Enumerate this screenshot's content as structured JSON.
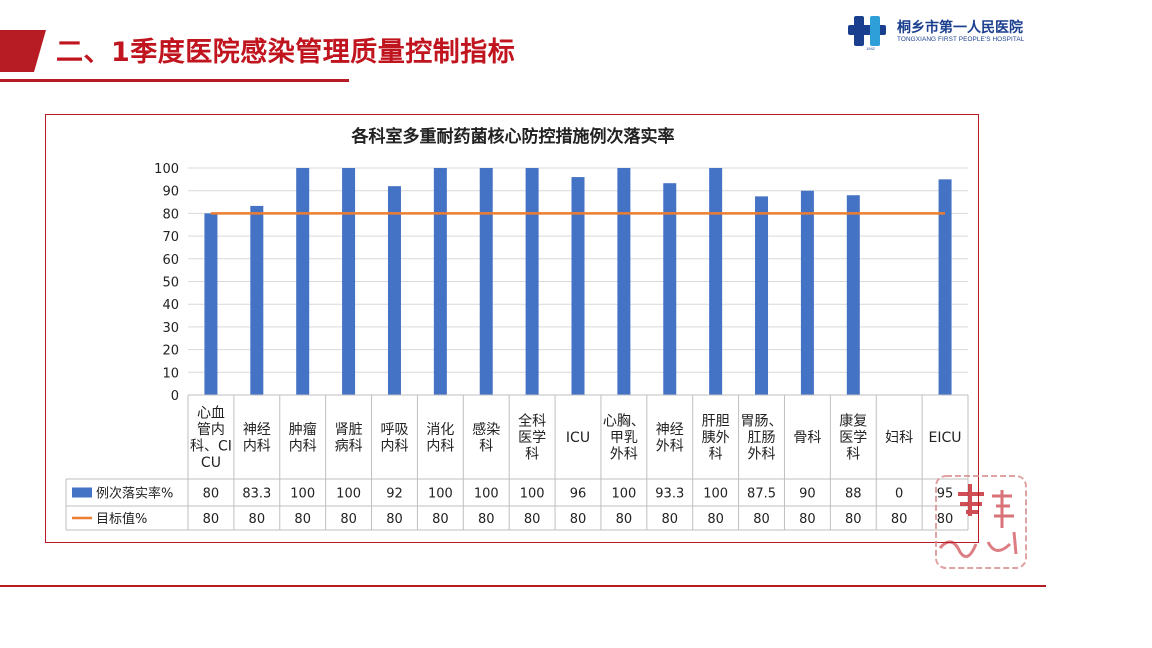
{
  "slide": {
    "title": "二、1季度医院感染管理质量控制指标"
  },
  "logo": {
    "name_cn": "桐乡市第一人民医院",
    "name_en": "TONGXIANG FIRST PEOPLE'S HOSPITAL",
    "year": "1942"
  },
  "colors": {
    "accent": "#b71c24",
    "bar": "#4472c4",
    "target_line": "#ed7d31",
    "logo_blue": "#1b3f8f"
  },
  "chart_data": {
    "type": "bar",
    "title": "各科室多重耐药菌核心防控措施例次落实率",
    "categories": [
      [
        "心血",
        "管内",
        "科、CI",
        "CU"
      ],
      [
        "神经",
        "内科"
      ],
      [
        "肿瘤",
        "内科"
      ],
      [
        "肾脏",
        "病科"
      ],
      [
        "呼吸",
        "内科"
      ],
      [
        "消化",
        "内科"
      ],
      [
        "感染",
        "科"
      ],
      [
        "全科",
        "医学",
        "科"
      ],
      [
        "ICU"
      ],
      [
        "心胸、",
        "甲乳",
        "外科"
      ],
      [
        "神经",
        "外科"
      ],
      [
        "肝胆",
        "胰外",
        "科"
      ],
      [
        "胃肠、",
        "肛肠",
        "外科"
      ],
      [
        "骨科"
      ],
      [
        "康复",
        "医学",
        "科"
      ],
      [
        "妇科"
      ],
      [
        "EICU"
      ]
    ],
    "series": [
      {
        "name": "例次落实率%",
        "type": "bar",
        "values": [
          80,
          83.3,
          100,
          100,
          92,
          100,
          100,
          100,
          96,
          100,
          93.3,
          100,
          87.5,
          90,
          88,
          0,
          95
        ]
      },
      {
        "name": "目标值%",
        "type": "line",
        "values": [
          80,
          80,
          80,
          80,
          80,
          80,
          80,
          80,
          80,
          80,
          80,
          80,
          80,
          80,
          80,
          80,
          80
        ]
      }
    ],
    "yticks": [
      "0",
      "10",
      "20",
      "30",
      "40",
      "50",
      "60",
      "70",
      "80",
      "90",
      "100"
    ],
    "ylim": [
      0,
      100
    ],
    "grid": true,
    "legend": "data-table"
  }
}
